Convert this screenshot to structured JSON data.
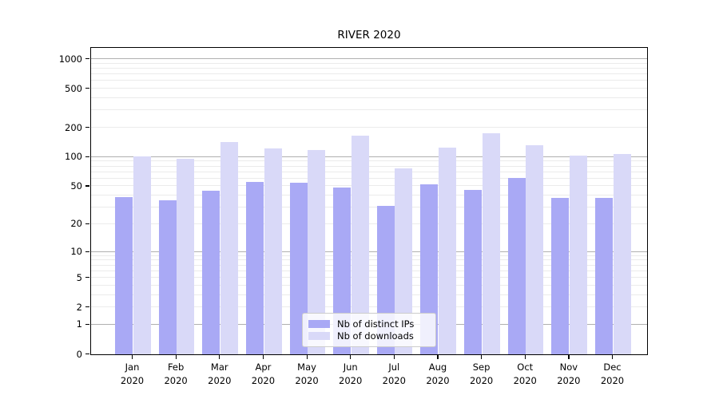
{
  "figure": {
    "title": "RIVER 2020"
  },
  "chart_data": {
    "type": "bar",
    "title": "RIVER 2020",
    "categories": [
      "Jan 2020",
      "Feb 2020",
      "Mar 2020",
      "Apr 2020",
      "May 2020",
      "Jun 2020",
      "Jul 2020",
      "Aug 2020",
      "Sep 2020",
      "Oct 2020",
      "Nov 2020",
      "Dec 2020"
    ],
    "months": [
      "Jan",
      "Feb",
      "Mar",
      "Apr",
      "May",
      "Jun",
      "Jul",
      "Aug",
      "Sep",
      "Oct",
      "Nov",
      "Dec"
    ],
    "year": "2020",
    "series": [
      {
        "name": "Nb of distinct IPs",
        "color": "#a9a9f5",
        "values": [
          39,
          36,
          45,
          56,
          55,
          49,
          31,
          52,
          46,
          61,
          38,
          38
        ]
      },
      {
        "name": "Nb of downloads",
        "color": "#d9d9f8",
        "values": [
          101,
          97,
          144,
          124,
          119,
          166,
          77,
          125,
          175,
          132,
          104,
          108
        ]
      }
    ],
    "xlabel": "",
    "ylabel": "",
    "y_scale": "log10(value+1)",
    "y_ticks": [
      0,
      1,
      2,
      5,
      10,
      20,
      50,
      100,
      200,
      500,
      1000
    ],
    "y_major_gridlines": [
      1,
      10,
      100,
      1000
    ],
    "ylim": [
      0,
      1325
    ],
    "grid": "horizontal",
    "legend_position": "bottom-center",
    "colors": {
      "major_grid": "#b0b0b0",
      "minor_grid": "#ebebeb",
      "axis": "#000000",
      "background": "#ffffff"
    }
  }
}
